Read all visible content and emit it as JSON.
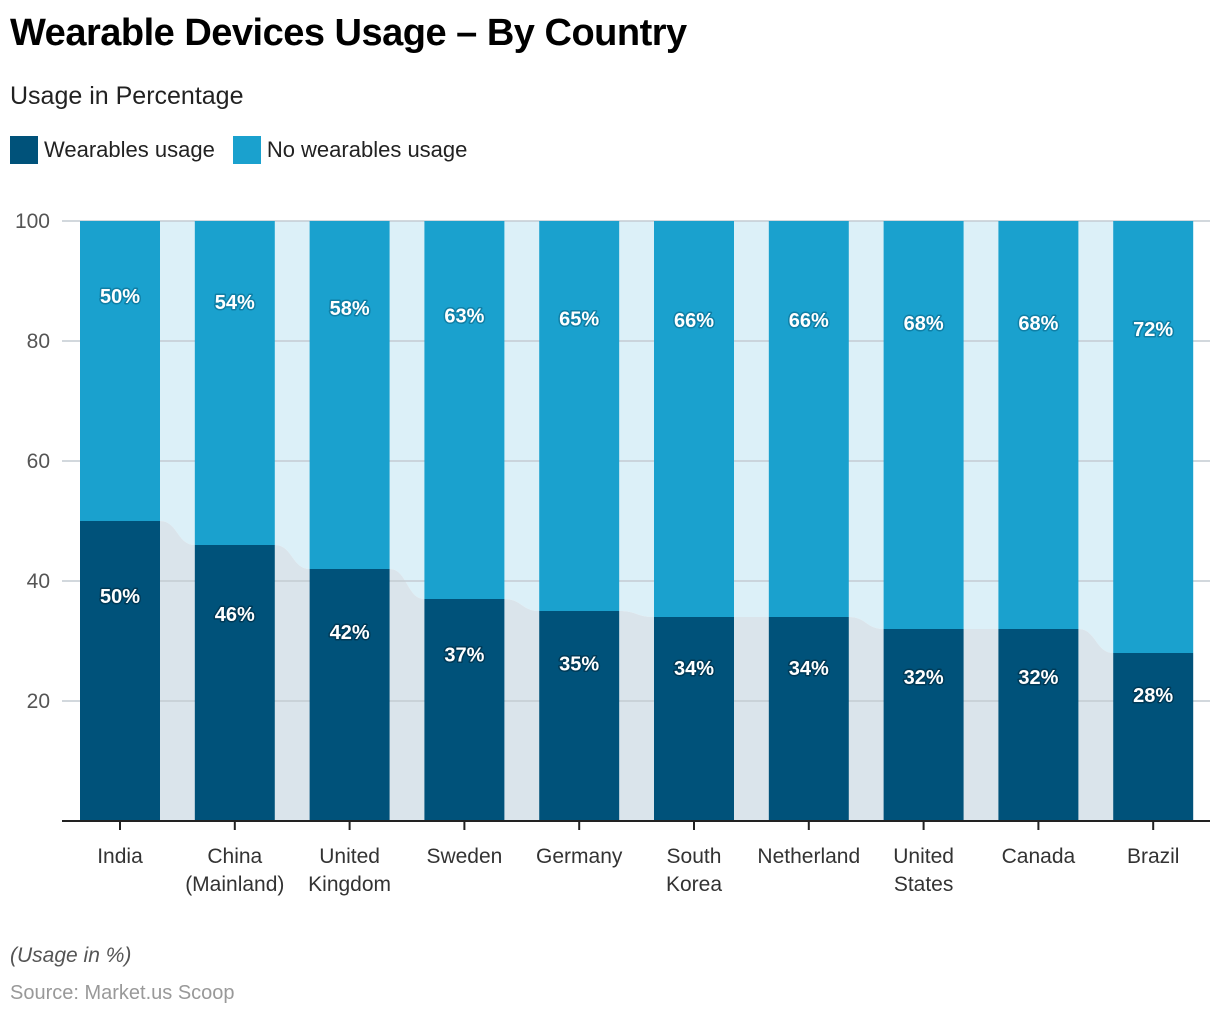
{
  "title": "Wearable Devices Usage – By Country",
  "subtitle": "Usage in Percentage",
  "legend": [
    {
      "label": "Wearables usage",
      "color": "#00527A"
    },
    {
      "label": "No wearables usage",
      "color": "#1AA1CE"
    }
  ],
  "footnote": "(Usage in %)",
  "source": "Source: Market.us Scoop",
  "chart_data": {
    "type": "bar",
    "stacked": true,
    "title": "Wearable Devices Usage – By Country",
    "subtitle": "Usage in Percentage",
    "xlabel": "",
    "ylabel": "",
    "ylim": [
      0,
      100
    ],
    "yticks": [
      20,
      40,
      60,
      80,
      100
    ],
    "grid": true,
    "legend_position": "top-left",
    "categories": [
      [
        "India"
      ],
      [
        "China",
        "(Mainland)"
      ],
      [
        "United",
        "Kingdom"
      ],
      [
        "Sweden"
      ],
      [
        "Germany"
      ],
      [
        "South",
        "Korea"
      ],
      [
        "Netherland"
      ],
      [
        "United",
        "States"
      ],
      [
        "Canada"
      ],
      [
        "Brazil"
      ]
    ],
    "series": [
      {
        "name": "Wearables usage",
        "color": "#00527A",
        "connector_color": "#DAE4EB",
        "values": [
          50,
          46,
          42,
          37,
          35,
          34,
          34,
          32,
          32,
          28
        ]
      },
      {
        "name": "No wearables usage",
        "color": "#1AA1CE",
        "connector_color": "#DCF0F8",
        "values": [
          50,
          54,
          58,
          63,
          65,
          66,
          66,
          68,
          68,
          72
        ]
      }
    ],
    "value_suffix": "%"
  }
}
